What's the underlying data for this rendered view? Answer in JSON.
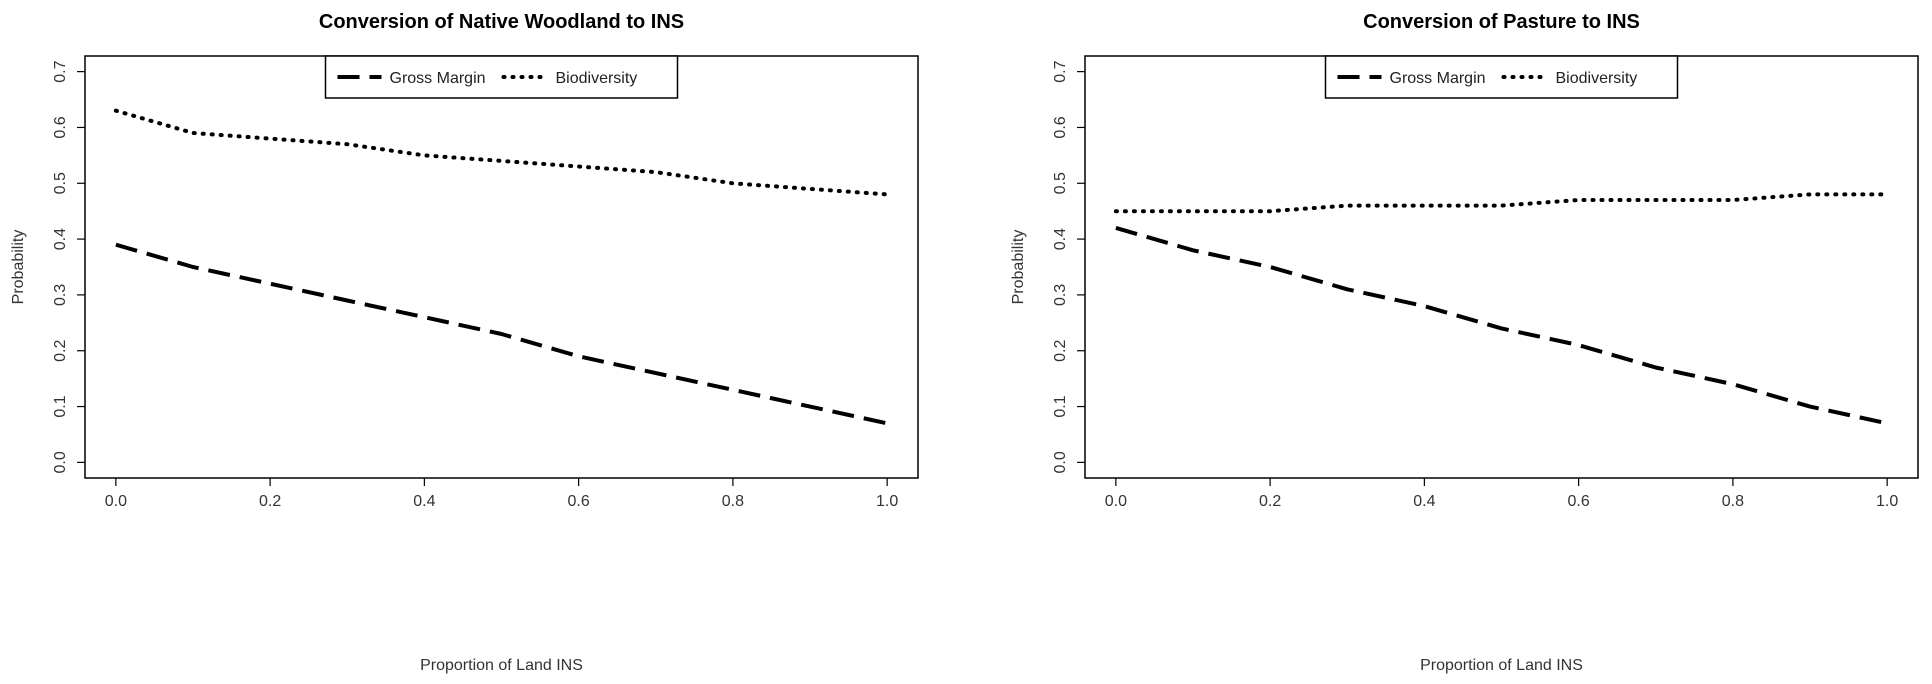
{
  "chart_data": [
    {
      "type": "line",
      "title": "Conversion of Native Woodland to INS",
      "xlabel": "Proportion of Land INS",
      "ylabel": "Probability",
      "xlim": [
        0,
        1
      ],
      "ylim": [
        0,
        0.7
      ],
      "xticks": [
        "0.0",
        "0.2",
        "0.4",
        "0.6",
        "0.8",
        "1.0"
      ],
      "yticks": [
        "0.0",
        "0.1",
        "0.2",
        "0.3",
        "0.4",
        "0.5",
        "0.6",
        "0.7"
      ],
      "grid": false,
      "legend_position": "top-center",
      "x": [
        0.0,
        0.1,
        0.2,
        0.3,
        0.4,
        0.5,
        0.6,
        0.7,
        0.8,
        0.9,
        1.0
      ],
      "series": [
        {
          "name": "Gross Margin",
          "style": "dashed",
          "values": [
            0.39,
            0.35,
            0.32,
            0.29,
            0.26,
            0.23,
            0.19,
            0.16,
            0.13,
            0.1,
            0.07
          ]
        },
        {
          "name": "Biodiversity",
          "style": "dotted",
          "values": [
            0.63,
            0.59,
            0.58,
            0.57,
            0.55,
            0.54,
            0.53,
            0.52,
            0.5,
            0.49,
            0.48
          ]
        }
      ]
    },
    {
      "type": "line",
      "title": "Conversion of Pasture to INS",
      "xlabel": "Proportion of Land INS",
      "ylabel": "Probability",
      "xlim": [
        0,
        1
      ],
      "ylim": [
        0,
        0.7
      ],
      "xticks": [
        "0.0",
        "0.2",
        "0.4",
        "0.6",
        "0.8",
        "1.0"
      ],
      "yticks": [
        "0.0",
        "0.1",
        "0.2",
        "0.3",
        "0.4",
        "0.5",
        "0.6",
        "0.7"
      ],
      "grid": false,
      "legend_position": "top-center",
      "x": [
        0.0,
        0.1,
        0.2,
        0.3,
        0.4,
        0.5,
        0.6,
        0.7,
        0.8,
        0.9,
        1.0
      ],
      "series": [
        {
          "name": "Gross Margin",
          "style": "dashed",
          "values": [
            0.42,
            0.38,
            0.35,
            0.31,
            0.28,
            0.24,
            0.21,
            0.17,
            0.14,
            0.1,
            0.07
          ]
        },
        {
          "name": "Biodiversity",
          "style": "dotted",
          "values": [
            0.45,
            0.45,
            0.45,
            0.46,
            0.46,
            0.46,
            0.47,
            0.47,
            0.47,
            0.48,
            0.48
          ]
        }
      ]
    }
  ]
}
